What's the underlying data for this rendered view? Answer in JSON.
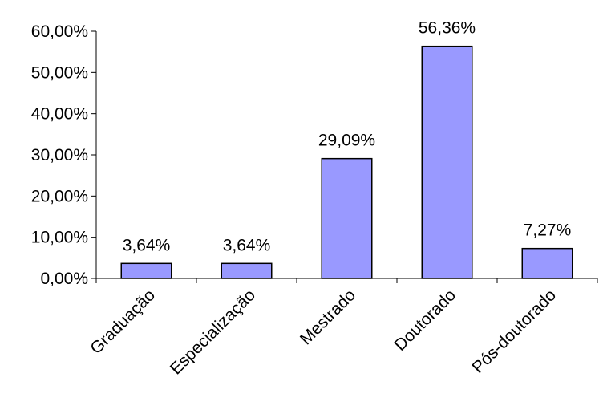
{
  "chart_data": {
    "type": "bar",
    "categories": [
      "Graduação",
      "Especialização",
      "Mestrado",
      "Doutorado",
      "Pós-doutorado"
    ],
    "values": [
      3.64,
      3.64,
      29.09,
      56.36,
      7.27
    ],
    "data_labels": [
      "3,64%",
      "3,64%",
      "29,09%",
      "56,36%",
      "7,27%"
    ],
    "ylim": [
      0,
      60
    ],
    "yticks": [
      0,
      10,
      20,
      30,
      40,
      50,
      60
    ],
    "ytick_labels": [
      "0,00%",
      "10,00%",
      "20,00%",
      "30,00%",
      "40,00%",
      "50,00%",
      "60,00%"
    ],
    "grid": false,
    "bar_color": "#9999ff",
    "bar_edge_color": "#000000"
  }
}
